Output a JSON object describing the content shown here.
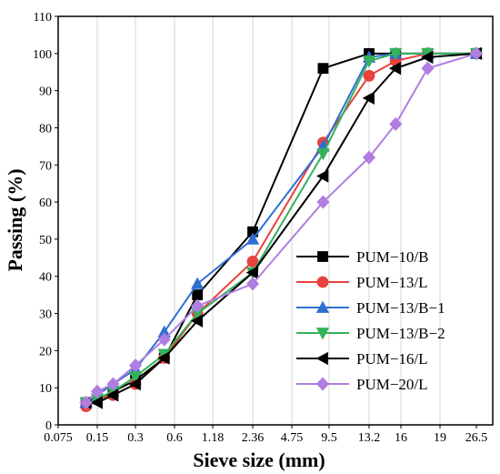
{
  "chart_data": {
    "type": "line",
    "xlabel": "Sieve size (mm)",
    "ylabel": "Passing (%)",
    "x_scale": "log-ish (sieve sizes)",
    "x_ticks": [
      "0.075",
      "0.15",
      "0.3",
      "0.6",
      "1.18",
      "2.36",
      "4.75",
      "9.5",
      "13.2",
      "16",
      "19",
      "26.5"
    ],
    "y_ticks": [
      "0",
      "10",
      "20",
      "30",
      "40",
      "50",
      "60",
      "70",
      "80",
      "90",
      "100",
      "110"
    ],
    "ylim": [
      0,
      110
    ],
    "grid": "vertical",
    "legend_position": "bottom-right",
    "series": [
      {
        "name": "PUM−10/B",
        "color": "#000000",
        "marker": "square",
        "x": [
          0.123,
          0.15,
          0.2,
          0.3,
          0.5,
          0.9,
          2.36,
          8.5,
          13.2,
          15.5,
          18,
          26.5
        ],
        "y": [
          6,
          7,
          9,
          12,
          18,
          35,
          52,
          96,
          100,
          100,
          100,
          100
        ]
      },
      {
        "name": "PUM−13/L",
        "color": "#e8423c",
        "marker": "circle",
        "x": [
          0.123,
          0.15,
          0.2,
          0.3,
          0.5,
          0.9,
          2.36,
          8.5,
          13.2,
          15.5,
          18,
          26.5
        ],
        "y": [
          5,
          7,
          8,
          11,
          18,
          30,
          44,
          76,
          94,
          98,
          100,
          100
        ]
      },
      {
        "name": "PUM−13/B−1",
        "color": "#2f6fd3",
        "marker": "triangle-up",
        "x": [
          0.123,
          0.15,
          0.2,
          0.3,
          0.5,
          0.9,
          2.36,
          8.5,
          13.2,
          15.5,
          18,
          26.5
        ],
        "y": [
          6,
          8,
          11,
          15,
          25,
          38,
          50,
          75,
          99,
          100,
          100,
          100
        ]
      },
      {
        "name": "PUM−13/B−2",
        "color": "#34b15a",
        "marker": "triangle-down",
        "x": [
          0.123,
          0.15,
          0.2,
          0.3,
          0.5,
          0.9,
          2.36,
          8.5,
          13.2,
          15.5,
          18,
          26.5
        ],
        "y": [
          6,
          7,
          9,
          13,
          19,
          30,
          41,
          73,
          98,
          100,
          100,
          100
        ]
      },
      {
        "name": "PUM−16/L",
        "color": "#000000",
        "marker": "triangle-left",
        "x": [
          0.123,
          0.15,
          0.2,
          0.3,
          0.5,
          0.9,
          2.36,
          8.5,
          13.2,
          15.5,
          18,
          26.5
        ],
        "y": [
          6,
          6,
          8,
          11,
          18,
          28,
          41,
          67,
          88,
          96,
          99,
          100
        ]
      },
      {
        "name": "PUM−20/L",
        "color": "#b07ee0",
        "marker": "diamond",
        "x": [
          0.123,
          0.15,
          0.2,
          0.3,
          0.5,
          0.9,
          2.36,
          8.5,
          13.2,
          15.5,
          18,
          26.5
        ],
        "y": [
          6,
          9,
          11,
          16,
          23,
          32,
          38,
          60,
          72,
          81,
          96,
          100
        ]
      }
    ]
  }
}
